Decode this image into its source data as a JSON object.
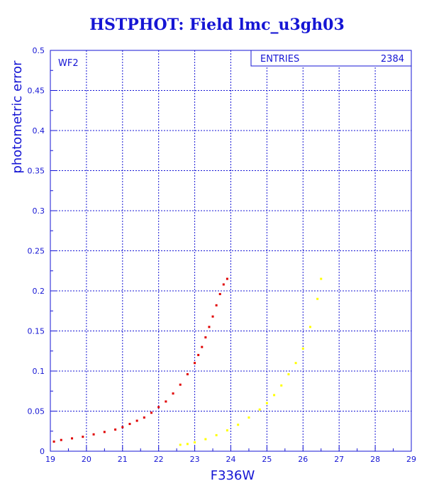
{
  "chart_data": {
    "type": "scatter",
    "title": "HSTPHOT: Field lmc_u3gh03",
    "xlabel": "F336W",
    "ylabel": "photometric error",
    "xlim": [
      19,
      29
    ],
    "ylim": [
      0,
      0.5
    ],
    "x_ticks": [
      "19",
      "20",
      "21",
      "22",
      "23",
      "24",
      "25",
      "26",
      "27",
      "28",
      "29"
    ],
    "y_ticks": [
      "0",
      "0.05",
      "0.1",
      "0.15",
      "0.2",
      "0.25",
      "0.3",
      "0.35",
      "0.4",
      "0.45",
      "0.5"
    ],
    "grid": true,
    "panel_label": "WF2",
    "stats_box": {
      "label": "ENTRIES",
      "value": "2384"
    },
    "series": [
      {
        "color": "#e00000",
        "x": [
          19.1,
          19.3,
          19.6,
          19.9,
          20.2,
          20.5,
          20.8,
          21.0,
          21.2,
          21.4,
          21.6,
          21.8,
          22.0,
          22.2,
          22.4,
          22.6,
          22.8,
          23.0,
          23.1,
          23.2,
          23.3,
          23.4,
          23.5,
          23.6,
          23.7,
          23.8,
          23.9
        ],
        "y": [
          0.012,
          0.014,
          0.016,
          0.018,
          0.021,
          0.024,
          0.027,
          0.03,
          0.034,
          0.038,
          0.042,
          0.048,
          0.055,
          0.062,
          0.072,
          0.083,
          0.096,
          0.11,
          0.12,
          0.13,
          0.142,
          0.155,
          0.168,
          0.182,
          0.196,
          0.208,
          0.215
        ]
      },
      {
        "color": "#ffff00",
        "x": [
          22.6,
          22.8,
          23.0,
          23.3,
          23.6,
          23.9,
          24.2,
          24.5,
          24.8,
          25.0,
          25.2,
          25.4,
          25.6,
          25.8,
          26.0,
          26.2,
          26.4,
          26.5
        ],
        "y": [
          0.008,
          0.009,
          0.011,
          0.015,
          0.02,
          0.026,
          0.033,
          0.042,
          0.052,
          0.06,
          0.07,
          0.082,
          0.096,
          0.11,
          0.128,
          0.155,
          0.19,
          0.215
        ]
      }
    ]
  }
}
